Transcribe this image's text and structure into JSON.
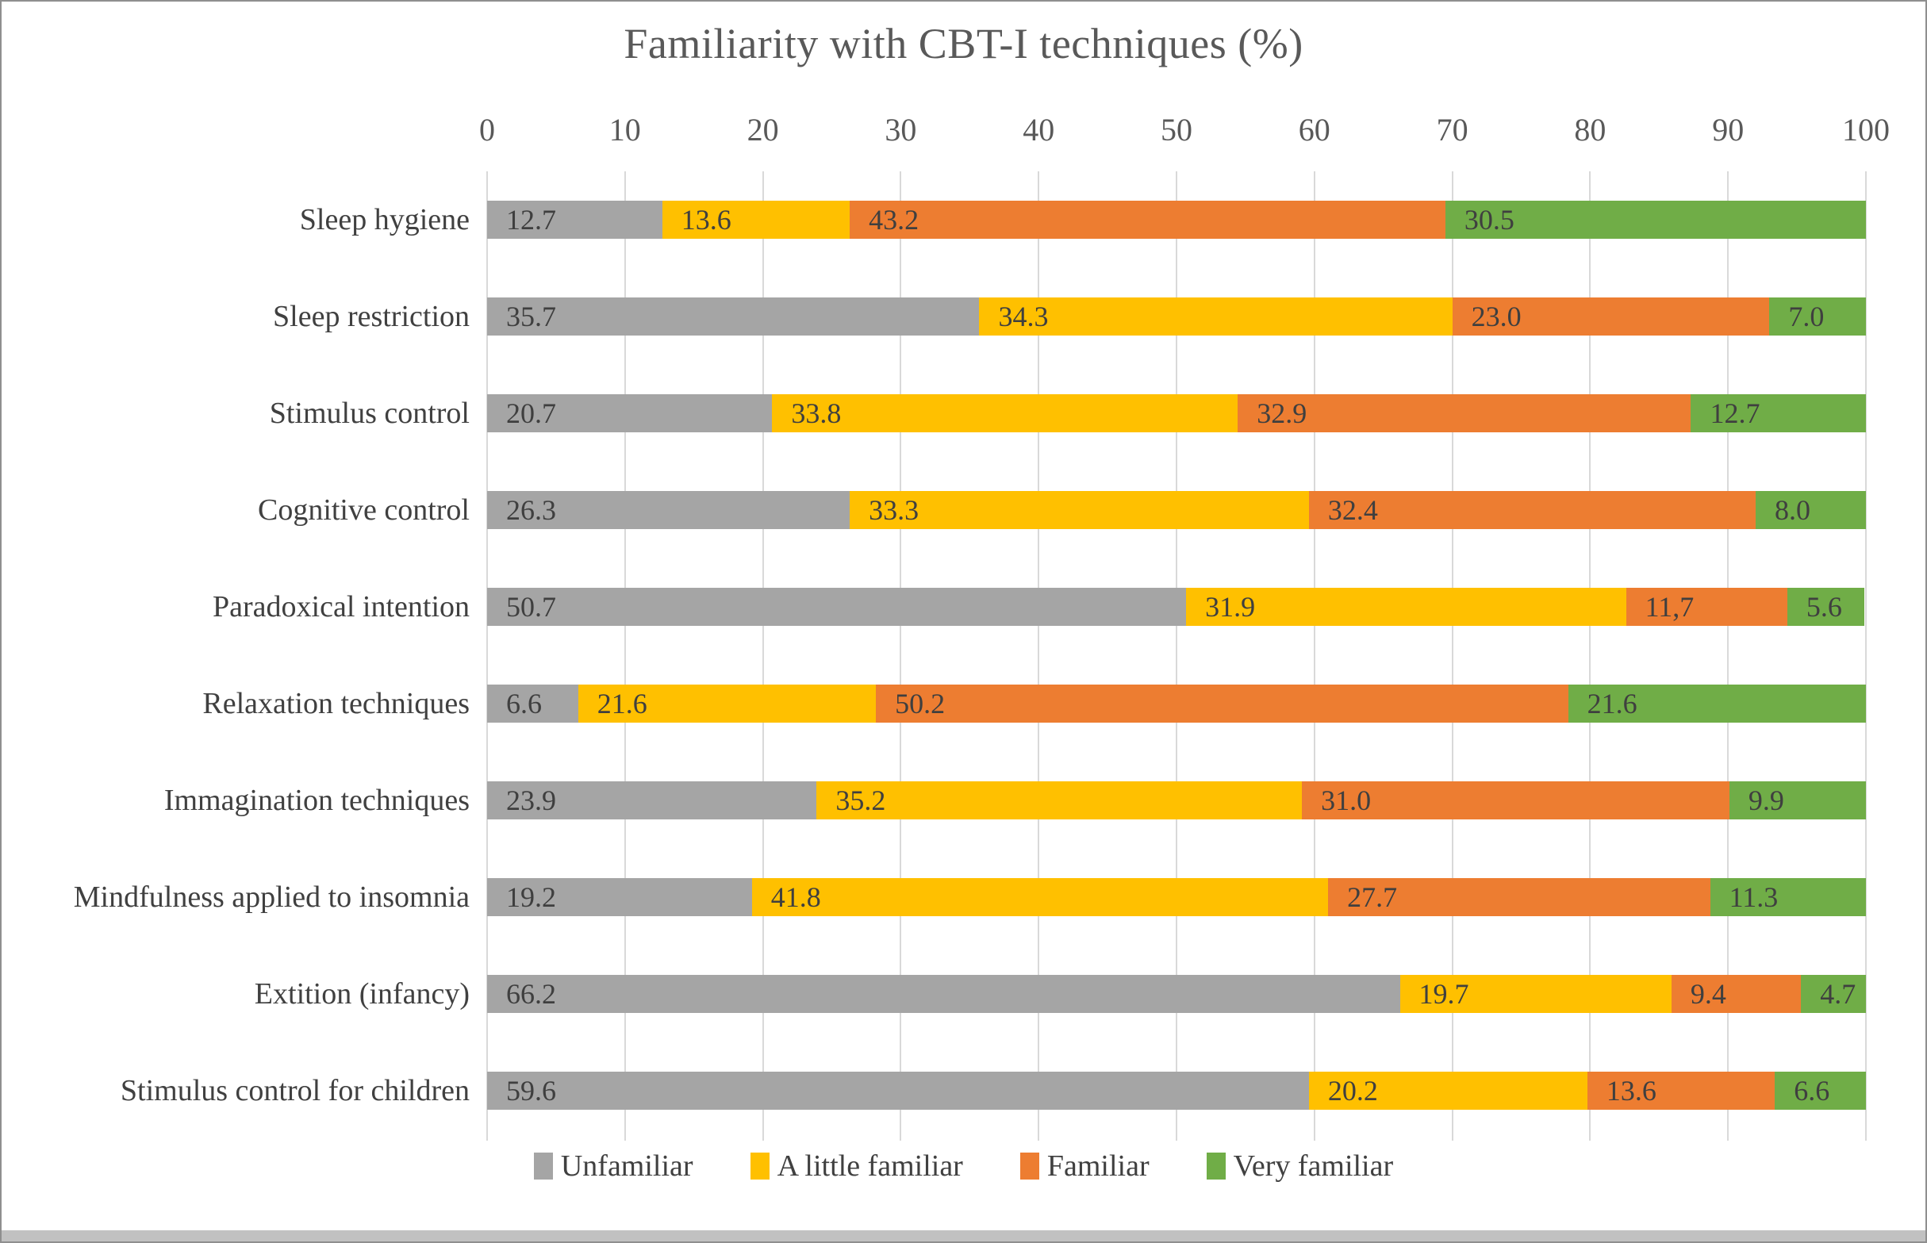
{
  "chart_data": {
    "type": "bar",
    "variant": "horizontal-stacked",
    "title": "Familiarity with CBT-I techniques (%)",
    "xlabel": "",
    "ylabel": "",
    "xlim": [
      0,
      100
    ],
    "x_ticks": [
      "0",
      "10",
      "20",
      "30",
      "40",
      "50",
      "60",
      "70",
      "80",
      "90",
      "100"
    ],
    "grid": "vertical",
    "legend_position": "bottom",
    "categories": [
      "Sleep hygiene",
      "Sleep restriction",
      "Stimulus control",
      "Cognitive control",
      "Paradoxical intention",
      "Relaxation techniques",
      "Immagination techniques",
      "Mindfulness applied to insomnia",
      "Extition (infancy)",
      "Stimulus control for children"
    ],
    "series": [
      {
        "name": "Unfamiliar",
        "color": "#a5a5a5",
        "values": [
          12.7,
          35.7,
          20.7,
          26.3,
          50.7,
          6.6,
          23.9,
          19.2,
          66.2,
          59.6
        ],
        "labels": [
          "12.7",
          "35.7",
          "20.7",
          "26.3",
          "50.7",
          "6.6",
          "23.9",
          "19.2",
          "66.2",
          "59.6"
        ]
      },
      {
        "name": "A little familiar",
        "color": "#ffc000",
        "values": [
          13.6,
          34.3,
          33.8,
          33.3,
          31.9,
          21.6,
          35.2,
          41.8,
          19.7,
          20.2
        ],
        "labels": [
          "13.6",
          "34.3",
          "33.8",
          "33.3",
          "31.9",
          "21.6",
          "35.2",
          "41.8",
          "19.7",
          "20.2"
        ]
      },
      {
        "name": "Familiar",
        "color": "#ed7d31",
        "values": [
          43.2,
          23.0,
          32.9,
          32.4,
          11.7,
          50.2,
          31.0,
          27.7,
          9.4,
          13.6
        ],
        "labels": [
          "43.2",
          "23.0",
          "32.9",
          "32.4",
          "11,7",
          "50.2",
          "31.0",
          "27.7",
          "9.4",
          "13.6"
        ]
      },
      {
        "name": "Very familiar",
        "color": "#70ad47",
        "values": [
          30.5,
          7.0,
          12.7,
          8.0,
          5.6,
          21.6,
          9.9,
          11.3,
          4.7,
          6.6
        ],
        "labels": [
          "30.5",
          "7.0",
          "12.7",
          "8.0",
          "5.6",
          "21.6",
          "9.9",
          "11.3",
          "4.7",
          "6.6"
        ]
      }
    ]
  },
  "colors": {
    "title_text": "#595959",
    "axis_text": "#595959",
    "label_text": "#404040",
    "value_text": "#3f3f3f",
    "gridline": "#d9d9d9",
    "frame_border": "#8f8f8f",
    "bottom_strip": "#c1c1c1",
    "background": "#ffffff"
  }
}
